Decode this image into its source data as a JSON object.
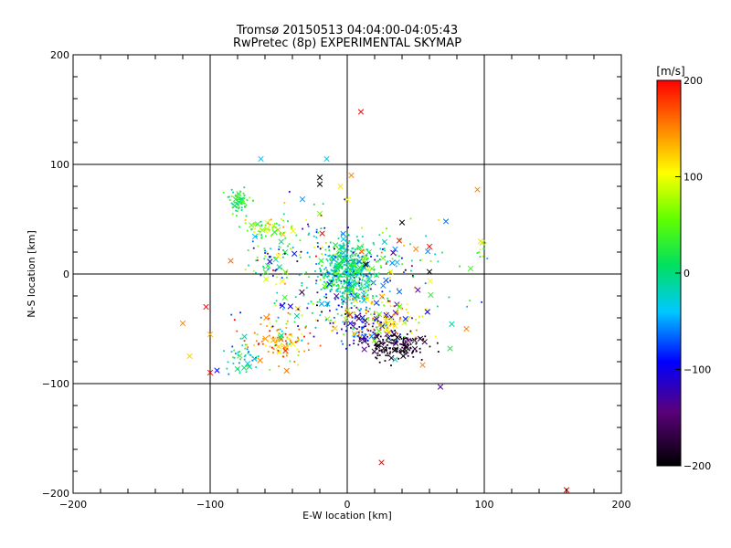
{
  "chart_data": {
    "type": "scatter",
    "title": "Tromsø 20150513 04:04:00-04:05:43",
    "subtitle": "RwPretec (8p) EXPERIMENTAL SKYMAP",
    "xlabel": "E-W location [km]",
    "ylabel": "N-S location [km]",
    "xlim": [
      -200,
      200
    ],
    "ylim": [
      -200,
      200
    ],
    "xticks": [
      -200,
      -100,
      0,
      100,
      200
    ],
    "yticks": [
      -200,
      -100,
      0,
      100,
      200
    ],
    "grid": true,
    "colorbar": {
      "label": "[m/s]",
      "range": [
        -200,
        200
      ],
      "ticks": [
        200,
        100,
        0,
        -100,
        -200
      ],
      "colormap": "rainbow-black-to-red",
      "position": "right"
    },
    "clusters": [
      {
        "x": 0,
        "y": 5,
        "sx": 9,
        "sy": 14,
        "n": 380,
        "v": 0,
        "sv": 35
      },
      {
        "x": 5,
        "y": -20,
        "sx": 14,
        "sy": 16,
        "n": 140,
        "v": -30,
        "sv": 60
      },
      {
        "x": 35,
        "y": -65,
        "sx": 12,
        "sy": 6,
        "n": 170,
        "v": -185,
        "sv": 15
      },
      {
        "x": 15,
        "y": -50,
        "sx": 14,
        "sy": 8,
        "n": 90,
        "v": -110,
        "sv": 30
      },
      {
        "x": 25,
        "y": -40,
        "sx": 18,
        "sy": 10,
        "n": 100,
        "v": 110,
        "sv": 50
      },
      {
        "x": -48,
        "y": -62,
        "sx": 12,
        "sy": 10,
        "n": 110,
        "v": 130,
        "sv": 40
      },
      {
        "x": -75,
        "y": -78,
        "sx": 6,
        "sy": 8,
        "n": 45,
        "v": -15,
        "sv": 35
      },
      {
        "x": -78,
        "y": 66,
        "sx": 4,
        "sy": 6,
        "n": 60,
        "v": 20,
        "sv": 25
      },
      {
        "x": -60,
        "y": 42,
        "sx": 8,
        "sy": 5,
        "n": 60,
        "v": 60,
        "sv": 40
      },
      {
        "x": -55,
        "y": 10,
        "sx": 9,
        "sy": 12,
        "n": 60,
        "v": 0,
        "sv": 80
      },
      {
        "x": -30,
        "y": 30,
        "sx": 15,
        "sy": 20,
        "n": 60,
        "v": 0,
        "sv": 90
      },
      {
        "x": 30,
        "y": 15,
        "sx": 15,
        "sy": 14,
        "n": 70,
        "v": 0,
        "sv": 70
      },
      {
        "x": -35,
        "y": -30,
        "sx": 15,
        "sy": 14,
        "n": 60,
        "v": -40,
        "sv": 90
      },
      {
        "x": 55,
        "y": -10,
        "sx": 20,
        "sy": 25,
        "n": 40,
        "v": 0,
        "sv": 90
      },
      {
        "x": 98,
        "y": 22,
        "sx": 2,
        "sy": 4,
        "n": 10,
        "v": 60,
        "sv": 30
      }
    ],
    "points": [
      {
        "x": 10,
        "y": 148,
        "v": 200
      },
      {
        "x": 160,
        "y": -197,
        "v": 200
      },
      {
        "x": 25,
        "y": -172,
        "v": 200
      },
      {
        "x": -100,
        "y": -90,
        "v": 200
      },
      {
        "x": -103,
        "y": -30,
        "v": 200
      },
      {
        "x": 87,
        "y": -50,
        "v": 150
      },
      {
        "x": 95,
        "y": 77,
        "v": 150
      },
      {
        "x": -63,
        "y": 105,
        "v": -40
      },
      {
        "x": -15,
        "y": 105,
        "v": -30
      },
      {
        "x": -20,
        "y": 88,
        "v": -200
      },
      {
        "x": -20,
        "y": 82,
        "v": -200
      },
      {
        "x": 3,
        "y": 90,
        "v": 150
      },
      {
        "x": -5,
        "y": 80,
        "v": 110
      },
      {
        "x": 0,
        "y": 68,
        "v": 100
      },
      {
        "x": -120,
        "y": -45,
        "v": 150
      },
      {
        "x": -115,
        "y": -75,
        "v": 120
      },
      {
        "x": -95,
        "y": -88,
        "v": -90
      },
      {
        "x": 55,
        "y": -83,
        "v": 150
      },
      {
        "x": 60,
        "y": 2,
        "v": -200
      },
      {
        "x": 68,
        "y": -103,
        "v": -130
      },
      {
        "x": 72,
        "y": 48,
        "v": -60
      },
      {
        "x": 90,
        "y": 5,
        "v": 40
      },
      {
        "x": -85,
        "y": 12,
        "v": 160
      },
      {
        "x": -100,
        "y": -55,
        "v": 130
      },
      {
        "x": 40,
        "y": 47,
        "v": -200
      },
      {
        "x": 60,
        "y": 25,
        "v": 200
      },
      {
        "x": -45,
        "y": -70,
        "v": 190
      },
      {
        "x": 35,
        "y": -78,
        "v": -20
      },
      {
        "x": 75,
        "y": -68,
        "v": 20
      }
    ]
  }
}
